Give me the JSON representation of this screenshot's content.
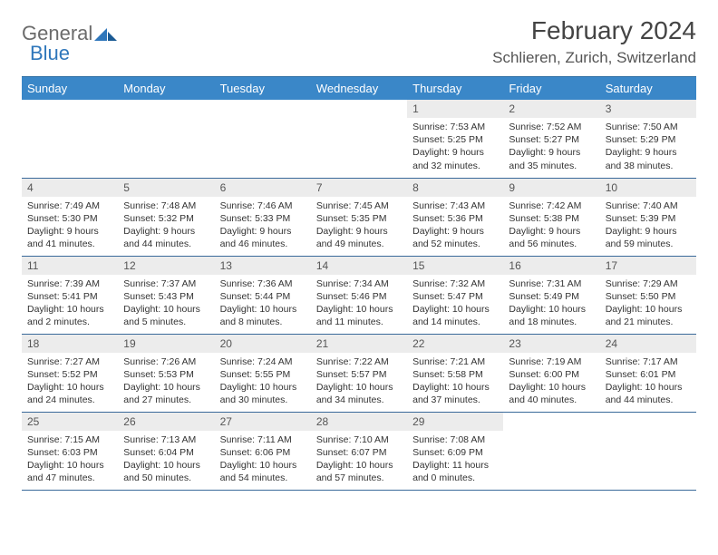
{
  "logo": {
    "word1": "General",
    "word2": "Blue"
  },
  "title": "February 2024",
  "location": "Schlieren, Zurich, Switzerland",
  "colors": {
    "header_bg": "#3a87c8",
    "header_text": "#ffffff",
    "daynum_bg": "#ececec",
    "row_border": "#3a6a9a",
    "logo_gray": "#6b6b6b",
    "logo_blue": "#2f77bb"
  },
  "weekdays": [
    "Sunday",
    "Monday",
    "Tuesday",
    "Wednesday",
    "Thursday",
    "Friday",
    "Saturday"
  ],
  "weeks": [
    [
      null,
      null,
      null,
      null,
      {
        "n": "1",
        "rise": "7:53 AM",
        "set": "5:25 PM",
        "dl": "9 hours and 32 minutes."
      },
      {
        "n": "2",
        "rise": "7:52 AM",
        "set": "5:27 PM",
        "dl": "9 hours and 35 minutes."
      },
      {
        "n": "3",
        "rise": "7:50 AM",
        "set": "5:29 PM",
        "dl": "9 hours and 38 minutes."
      }
    ],
    [
      {
        "n": "4",
        "rise": "7:49 AM",
        "set": "5:30 PM",
        "dl": "9 hours and 41 minutes."
      },
      {
        "n": "5",
        "rise": "7:48 AM",
        "set": "5:32 PM",
        "dl": "9 hours and 44 minutes."
      },
      {
        "n": "6",
        "rise": "7:46 AM",
        "set": "5:33 PM",
        "dl": "9 hours and 46 minutes."
      },
      {
        "n": "7",
        "rise": "7:45 AM",
        "set": "5:35 PM",
        "dl": "9 hours and 49 minutes."
      },
      {
        "n": "8",
        "rise": "7:43 AM",
        "set": "5:36 PM",
        "dl": "9 hours and 52 minutes."
      },
      {
        "n": "9",
        "rise": "7:42 AM",
        "set": "5:38 PM",
        "dl": "9 hours and 56 minutes."
      },
      {
        "n": "10",
        "rise": "7:40 AM",
        "set": "5:39 PM",
        "dl": "9 hours and 59 minutes."
      }
    ],
    [
      {
        "n": "11",
        "rise": "7:39 AM",
        "set": "5:41 PM",
        "dl": "10 hours and 2 minutes."
      },
      {
        "n": "12",
        "rise": "7:37 AM",
        "set": "5:43 PM",
        "dl": "10 hours and 5 minutes."
      },
      {
        "n": "13",
        "rise": "7:36 AM",
        "set": "5:44 PM",
        "dl": "10 hours and 8 minutes."
      },
      {
        "n": "14",
        "rise": "7:34 AM",
        "set": "5:46 PM",
        "dl": "10 hours and 11 minutes."
      },
      {
        "n": "15",
        "rise": "7:32 AM",
        "set": "5:47 PM",
        "dl": "10 hours and 14 minutes."
      },
      {
        "n": "16",
        "rise": "7:31 AM",
        "set": "5:49 PM",
        "dl": "10 hours and 18 minutes."
      },
      {
        "n": "17",
        "rise": "7:29 AM",
        "set": "5:50 PM",
        "dl": "10 hours and 21 minutes."
      }
    ],
    [
      {
        "n": "18",
        "rise": "7:27 AM",
        "set": "5:52 PM",
        "dl": "10 hours and 24 minutes."
      },
      {
        "n": "19",
        "rise": "7:26 AM",
        "set": "5:53 PM",
        "dl": "10 hours and 27 minutes."
      },
      {
        "n": "20",
        "rise": "7:24 AM",
        "set": "5:55 PM",
        "dl": "10 hours and 30 minutes."
      },
      {
        "n": "21",
        "rise": "7:22 AM",
        "set": "5:57 PM",
        "dl": "10 hours and 34 minutes."
      },
      {
        "n": "22",
        "rise": "7:21 AM",
        "set": "5:58 PM",
        "dl": "10 hours and 37 minutes."
      },
      {
        "n": "23",
        "rise": "7:19 AM",
        "set": "6:00 PM",
        "dl": "10 hours and 40 minutes."
      },
      {
        "n": "24",
        "rise": "7:17 AM",
        "set": "6:01 PM",
        "dl": "10 hours and 44 minutes."
      }
    ],
    [
      {
        "n": "25",
        "rise": "7:15 AM",
        "set": "6:03 PM",
        "dl": "10 hours and 47 minutes."
      },
      {
        "n": "26",
        "rise": "7:13 AM",
        "set": "6:04 PM",
        "dl": "10 hours and 50 minutes."
      },
      {
        "n": "27",
        "rise": "7:11 AM",
        "set": "6:06 PM",
        "dl": "10 hours and 54 minutes."
      },
      {
        "n": "28",
        "rise": "7:10 AM",
        "set": "6:07 PM",
        "dl": "10 hours and 57 minutes."
      },
      {
        "n": "29",
        "rise": "7:08 AM",
        "set": "6:09 PM",
        "dl": "11 hours and 0 minutes."
      },
      null,
      null
    ]
  ],
  "labels": {
    "sunrise": "Sunrise:",
    "sunset": "Sunset:",
    "daylight": "Daylight:"
  }
}
